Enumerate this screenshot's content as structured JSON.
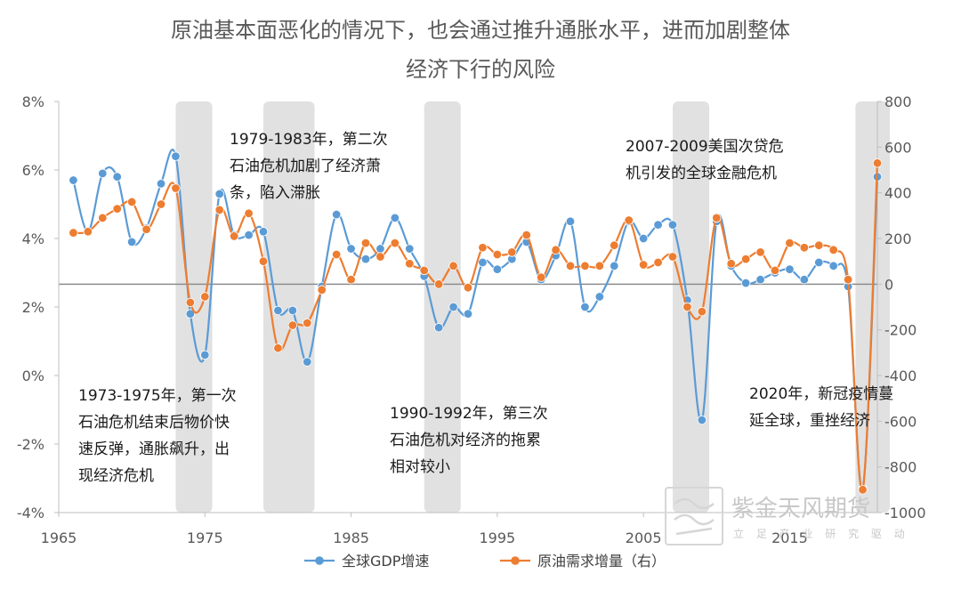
{
  "chart_data": {
    "type": "line",
    "title_lines": [
      "原油基本面恶化的情况下，也会通过推升通胀水平，进而加剧整体",
      "经济下行的风险"
    ],
    "x_ticks": [
      "1965",
      "1975",
      "1985",
      "1995",
      "2005",
      "2015"
    ],
    "y_left_ticks": [
      "8%",
      "6%",
      "4%",
      "2%",
      "0%",
      "-2%",
      "-4%"
    ],
    "y_right_ticks": [
      "800",
      "600",
      "400",
      "200",
      "0",
      "-200",
      "-400",
      "-600",
      "-800",
      "-1000"
    ],
    "ylim_left": [
      -4,
      8
    ],
    "ylim_right": [
      -1000,
      800
    ],
    "xlim": [
      1965,
      2021
    ],
    "series": [
      {
        "name": "全球GDP增速",
        "color": "#5B9BD5",
        "axis": "left",
        "x": [
          1966,
          1967,
          1968,
          1969,
          1970,
          1971,
          1972,
          1973,
          1974,
          1975,
          1976,
          1977,
          1978,
          1979,
          1980,
          1981,
          1982,
          1983,
          1984,
          1985,
          1986,
          1987,
          1988,
          1989,
          1990,
          1991,
          1992,
          1993,
          1994,
          1995,
          1996,
          1997,
          1998,
          1999,
          2000,
          2001,
          2002,
          2003,
          2004,
          2005,
          2006,
          2007,
          2008,
          2009,
          2010,
          2011,
          2012,
          2013,
          2014,
          2015,
          2016,
          2017,
          2018,
          2019,
          2020,
          2021
        ],
        "values": [
          5.7,
          4.2,
          5.9,
          5.8,
          3.9,
          4.3,
          5.6,
          6.4,
          1.8,
          0.6,
          5.3,
          4.1,
          4.1,
          4.2,
          1.9,
          1.9,
          0.4,
          2.6,
          4.7,
          3.7,
          3.4,
          3.7,
          4.6,
          3.7,
          2.9,
          1.4,
          2.0,
          1.8,
          3.3,
          3.1,
          3.4,
          3.9,
          2.8,
          3.5,
          4.5,
          2.0,
          2.3,
          3.2,
          4.5,
          4.0,
          4.4,
          4.4,
          2.2,
          -1.3,
          4.5,
          3.2,
          2.7,
          2.8,
          3.0,
          3.1,
          2.8,
          3.3,
          3.2,
          2.6,
          -3.3,
          5.8
        ]
      },
      {
        "name": "原油需求增量（右）",
        "color": "#ED7D31",
        "axis": "right",
        "x": [
          1966,
          1967,
          1968,
          1969,
          1970,
          1971,
          1972,
          1973,
          1974,
          1975,
          1976,
          1977,
          1978,
          1979,
          1980,
          1981,
          1982,
          1983,
          1984,
          1985,
          1986,
          1987,
          1988,
          1989,
          1990,
          1991,
          1992,
          1993,
          1994,
          1995,
          1996,
          1997,
          1998,
          1999,
          2000,
          2001,
          2002,
          2003,
          2004,
          2005,
          2006,
          2007,
          2008,
          2009,
          2010,
          2011,
          2012,
          2013,
          2014,
          2015,
          2016,
          2017,
          2018,
          2019,
          2020,
          2021
        ],
        "values": [
          225,
          230,
          290,
          330,
          360,
          240,
          350,
          420,
          -80,
          -55,
          325,
          210,
          310,
          100,
          -280,
          -180,
          -170,
          -25,
          130,
          20,
          180,
          120,
          180,
          90,
          60,
          0,
          80,
          -15,
          160,
          130,
          140,
          215,
          30,
          150,
          80,
          80,
          80,
          170,
          280,
          85,
          95,
          120,
          -100,
          -120,
          290,
          90,
          110,
          140,
          60,
          180,
          160,
          170,
          150,
          20,
          -900,
          530
        ]
      }
    ],
    "shaded_periods": [
      [
        1973,
        1975.5
      ],
      [
        1979,
        1982.5
      ],
      [
        1990,
        1992.5
      ],
      [
        2007,
        2009.5
      ],
      [
        2019.5,
        2022
      ]
    ],
    "annotations": [
      {
        "lines": [
          "1979-1983年，第二次",
          "石油危机加剧了经济萧",
          "条，陷入滞胀"
        ]
      },
      {
        "lines": [
          "2007-2009美国次贷危",
          "机引发的全球金融危机"
        ]
      },
      {
        "lines": [
          "1973-1975年，第一次",
          "石油危机结束后物价快",
          "速反弹，通胀飙升，出",
          "现经济危机"
        ]
      },
      {
        "lines": [
          "1990-1992年，第三次",
          "石油危机对经济的拖累",
          "相对较小"
        ]
      },
      {
        "lines": [
          "2020年，新冠疫情蔓",
          "延全球，重挫经济"
        ]
      }
    ],
    "legend_position": "bottom",
    "watermark": {
      "text": "紫金天风期货",
      "subtext": "立 足 产 业 研 究 驱 动"
    }
  }
}
